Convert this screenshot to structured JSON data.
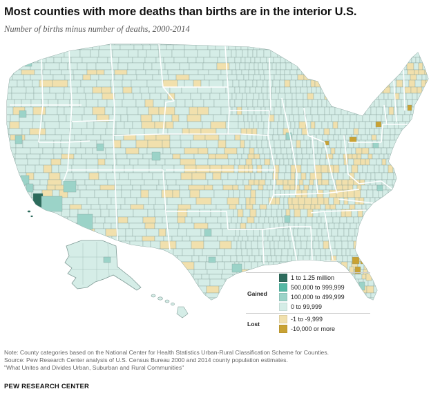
{
  "title": "Most counties with more deaths than births are in the interior U.S.",
  "subtitle": "Number of births minus number of deaths, 2000-2014",
  "colors": {
    "gained_1_to_1_25m": "#2d6b5c",
    "gained_500k_to_999k": "#55b8a4",
    "gained_100k_to_499k": "#9bd3c8",
    "gained_0_to_99k": "#d5ede7",
    "lost_1_to_9999": "#f1e0ad",
    "lost_10000_or_more": "#c9a233",
    "county_border": "#7e9a95",
    "state_border": "#ffffff"
  },
  "legend": {
    "gained_label": "Gained",
    "lost_label": "Lost",
    "gained_items": [
      {
        "label": "1 to 1.25 million",
        "color_key": "gained_1_to_1_25m"
      },
      {
        "label": "500,000 to 999,999",
        "color_key": "gained_500k_to_999k"
      },
      {
        "label": "100,000 to 499,999",
        "color_key": "gained_100k_to_499k"
      },
      {
        "label": "0 to 99,999",
        "color_key": "gained_0_to_99k"
      }
    ],
    "lost_items": [
      {
        "label": "-1 to -9,999",
        "color_key": "lost_1_to_9999"
      },
      {
        "label": "-10,000 or more",
        "color_key": "lost_10000_or_more"
      }
    ]
  },
  "notes": [
    "Note: County categories based on the National Center for Health Statistics Urban-Rural Classification Scheme for Counties.",
    "Source: Pew Research Center analysis of U.S. Census Bureau 2000 and 2014 county population  estimates.",
    "\"What Unites and Divides Urban, Suburban  and Rural Communities\""
  ],
  "source_org": "PEW RESEARCH CENTER"
}
